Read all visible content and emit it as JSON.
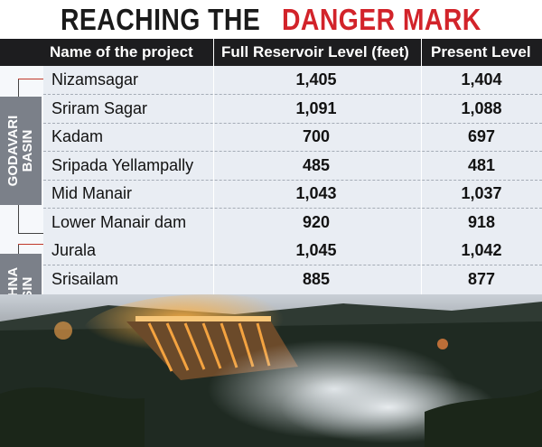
{
  "title": {
    "part1": "REACHING THE",
    "part2": "DANGER MARK"
  },
  "headers": {
    "name": "Name of the project",
    "full": "Full Reservoir Level (feet)",
    "present": "Present Level"
  },
  "basins": {
    "godavari": "GODAVARI BASIN",
    "krishna": "KRISHNA BASIN"
  },
  "rows": [
    {
      "name": "Nizamsagar",
      "full": "1,405",
      "present": "1,404"
    },
    {
      "name": "Sriram Sagar",
      "full": "1,091",
      "present": "1,088"
    },
    {
      "name": "Kadam",
      "full": "700",
      "present": "697"
    },
    {
      "name": "Sripada Yellampally",
      "full": "485",
      "present": "481"
    },
    {
      "name": "Mid Manair",
      "full": "1,043",
      "present": "1,037"
    },
    {
      "name": "Lower Manair dam",
      "full": "920",
      "present": "918"
    },
    {
      "name": "Jurala",
      "full": "1,045",
      "present": "1,042"
    },
    {
      "name": "Srisailam",
      "full": "885",
      "present": "877"
    }
  ],
  "colors": {
    "title_accent": "#d2232a",
    "header_bg": "#1d1d1f",
    "basin_label_bg": "#7b8089"
  }
}
